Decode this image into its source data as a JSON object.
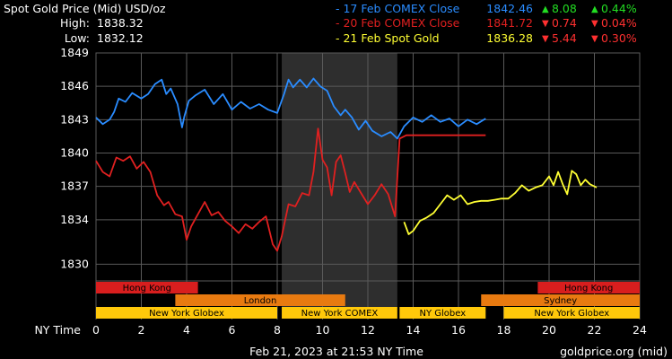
{
  "header": {
    "title": "Spot Gold Price (Mid) USD/oz",
    "high_label": "High:",
    "high_value": "1838.32",
    "low_label": "Low:",
    "low_value": "1832.12"
  },
  "legend": [
    {
      "label": "- 17 Feb COMEX Close",
      "price": "1842.46",
      "change_arrow": "▲",
      "change": "8.08",
      "pct_arrow": "▲",
      "pct": "0.44%",
      "color": "#2a8cff",
      "change_color": "#22dd22"
    },
    {
      "label": "- 20 Feb COMEX Close",
      "price": "1841.72",
      "change_arrow": "▼",
      "change": "0.74",
      "pct_arrow": "▼",
      "pct": "0.04%",
      "color": "#e02020",
      "change_color": "#ff3030"
    },
    {
      "label": "- 21 Feb Spot Gold",
      "price": "1836.28",
      "change_arrow": "▼",
      "change": "5.44",
      "pct_arrow": "▼",
      "pct": "0.30%",
      "color": "#ffff33",
      "change_color": "#ff3030"
    }
  ],
  "footer": {
    "timestamp": "Feb 21, 2023 at 21:53 NY Time",
    "source": "goldprice.org (mid)",
    "xaxis_name": "NY Time"
  },
  "colors": {
    "background": "#000000",
    "grid": "#5a5a5a",
    "night_shade": "#2e2e2e",
    "axis_text": "#ffffff",
    "series_17feb": "#2a8cff",
    "series_20feb": "#e02020",
    "series_21feb": "#ffff33"
  },
  "chart_data": {
    "type": "line",
    "title": "Spot Gold Price (Mid) USD/oz",
    "xlabel": "NY Time",
    "ylabel": "",
    "xlim": [
      0,
      24
    ],
    "ylim": [
      1828.5,
      1849
    ],
    "grid": true,
    "legend_position": "top-right",
    "x_ticks": [
      0,
      2,
      4,
      6,
      8,
      10,
      12,
      14,
      16,
      18,
      20,
      22,
      24
    ],
    "y_ticks": [
      1830,
      1834,
      1837,
      1840,
      1843,
      1846,
      1849
    ],
    "shaded_x_range": [
      8.2,
      13.3
    ],
    "series": [
      {
        "name": "17 Feb COMEX Close",
        "color": "#2a8cff",
        "x": [
          0,
          0.3,
          0.6,
          0.8,
          1,
          1.3,
          1.6,
          2,
          2.3,
          2.6,
          2.9,
          3.1,
          3.3,
          3.6,
          3.8,
          3.9,
          4.1,
          4.4,
          4.8,
          5.2,
          5.6,
          6,
          6.4,
          6.8,
          7.2,
          7.6,
          8,
          8.3,
          8.5,
          8.7,
          9,
          9.3,
          9.6,
          9.9,
          10.2,
          10.5,
          10.8,
          11,
          11.3,
          11.6,
          11.9,
          12.2,
          12.6,
          13,
          13.3,
          13.6,
          14,
          14.4,
          14.8,
          15.2,
          15.6,
          16,
          16.4,
          16.8,
          17.2
        ],
        "y": [
          1843.2,
          1842.6,
          1843,
          1843.7,
          1844.9,
          1844.6,
          1845.4,
          1844.9,
          1845.3,
          1846.2,
          1846.6,
          1845.3,
          1845.8,
          1844.4,
          1842.3,
          1843.3,
          1844.7,
          1845.2,
          1845.7,
          1844.4,
          1845.3,
          1843.9,
          1844.6,
          1844,
          1844.4,
          1843.9,
          1843.6,
          1845.3,
          1846.6,
          1845.9,
          1846.6,
          1845.9,
          1846.7,
          1846,
          1845.6,
          1844.2,
          1843.4,
          1843.9,
          1843.2,
          1842.1,
          1842.9,
          1842,
          1841.5,
          1841.9,
          1841.3,
          1842.4,
          1843.2,
          1842.8,
          1843.4,
          1842.8,
          1843.1,
          1842.4,
          1843,
          1842.6,
          1843.1
        ]
      },
      {
        "name": "20 Feb COMEX Close",
        "color": "#e02020",
        "x": [
          0,
          0.3,
          0.6,
          0.9,
          1.2,
          1.5,
          1.8,
          2.1,
          2.4,
          2.7,
          3,
          3.2,
          3.5,
          3.8,
          4,
          4.2,
          4.5,
          4.8,
          5.1,
          5.4,
          5.7,
          6,
          6.3,
          6.6,
          6.9,
          7.2,
          7.5,
          7.8,
          8,
          8.2,
          8.5,
          8.8,
          9.1,
          9.4,
          9.6,
          9.8,
          10,
          10.2,
          10.4,
          10.6,
          10.8,
          11,
          11.2,
          11.4,
          11.7,
          12,
          12.3,
          12.6,
          12.9,
          13.2,
          13.4,
          13.7,
          14,
          15,
          16,
          16.8,
          17.2
        ],
        "y": [
          1839.3,
          1838.3,
          1837.9,
          1839.6,
          1839.3,
          1839.7,
          1838.6,
          1839.2,
          1838.3,
          1836.2,
          1835.3,
          1835.6,
          1834.5,
          1834.3,
          1832.2,
          1833.4,
          1834.5,
          1835.6,
          1834.4,
          1834.7,
          1833.9,
          1833.4,
          1832.8,
          1833.6,
          1833.2,
          1833.8,
          1834.3,
          1831.8,
          1831.2,
          1832.5,
          1835.4,
          1835.2,
          1836.4,
          1836.2,
          1838.3,
          1842.2,
          1839.4,
          1838.7,
          1836.2,
          1839.2,
          1839.8,
          1838.2,
          1836.5,
          1837.4,
          1836.4,
          1835.4,
          1836.2,
          1837.2,
          1836.3,
          1834.3,
          1841.3,
          1841.6,
          1841.6,
          1841.6,
          1841.6,
          1841.6,
          1841.6
        ]
      },
      {
        "name": "21 Feb Spot Gold",
        "color": "#ffff33",
        "x": [
          13.6,
          13.8,
          14,
          14.3,
          14.6,
          14.9,
          15.2,
          15.5,
          15.8,
          16.1,
          16.4,
          16.7,
          17,
          17.3,
          17.6,
          17.9,
          18.2,
          18.5,
          18.8,
          19.1,
          19.4,
          19.7,
          20,
          20.2,
          20.4,
          20.6,
          20.8,
          21,
          21.2,
          21.4,
          21.6,
          21.8,
          22.1
        ],
        "y": [
          1833.8,
          1832.7,
          1833,
          1833.9,
          1834.2,
          1834.6,
          1835.4,
          1836.2,
          1835.8,
          1836.2,
          1835.4,
          1835.6,
          1835.7,
          1835.7,
          1835.8,
          1835.9,
          1835.9,
          1836.4,
          1837.1,
          1836.6,
          1836.9,
          1837.1,
          1837.9,
          1837.1,
          1838.3,
          1837.2,
          1836.3,
          1838.4,
          1838.1,
          1837.1,
          1837.6,
          1837.2,
          1836.9
        ]
      }
    ],
    "sessions": [
      {
        "name": "Hong Kong",
        "row": 0,
        "start": 0,
        "end": 4.5,
        "color": "#d81e1e"
      },
      {
        "name": "Hong Kong",
        "row": 0,
        "start": 19.5,
        "end": 24,
        "color": "#d81e1e"
      },
      {
        "name": "London",
        "row": 1,
        "start": 3.5,
        "end": 11,
        "color": "#e87a10"
      },
      {
        "name": "Sydney",
        "row": 1,
        "start": 17,
        "end": 24,
        "color": "#e87a10"
      },
      {
        "name": "New York Globex",
        "row": 2,
        "start": 0,
        "end": 8,
        "color": "#ffc80a"
      },
      {
        "name": "New York COMEX",
        "row": 2,
        "start": 8.2,
        "end": 13.3,
        "color": "#ffc80a"
      },
      {
        "name": "NY Globex",
        "row": 2,
        "start": 13.4,
        "end": 17.2,
        "color": "#ffc80a"
      },
      {
        "name": "New York Globex",
        "row": 2,
        "start": 18,
        "end": 24,
        "color": "#ffc80a"
      }
    ]
  }
}
